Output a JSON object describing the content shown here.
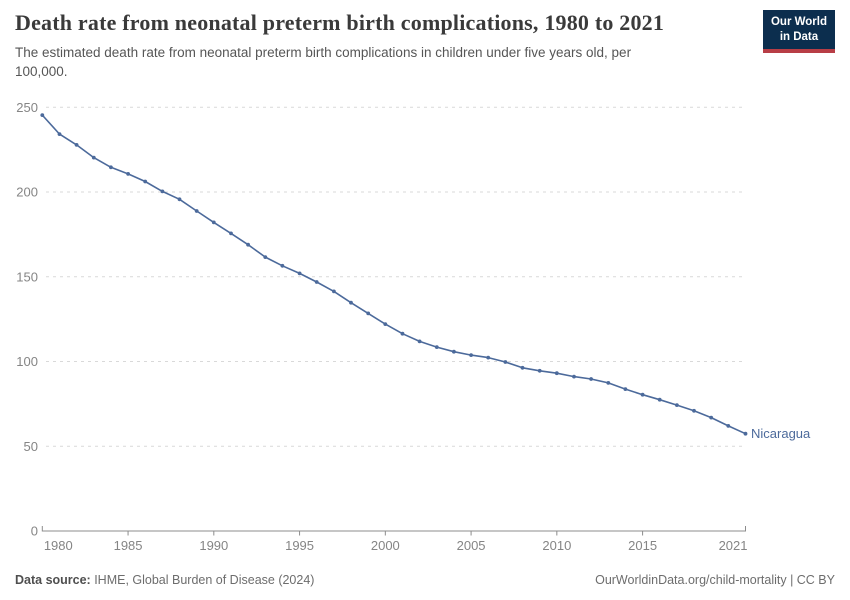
{
  "header": {
    "title": "Death rate from neonatal preterm birth complications, 1980 to 2021",
    "subtitle": "The estimated death rate from neonatal preterm birth complications in children under five years old, per\n100,000.",
    "logo": {
      "line1": "Our World",
      "line2": "in Data",
      "bg_color": "#0C2E4E",
      "accent_color": "#B83E46"
    }
  },
  "chart_data": {
    "type": "line",
    "title": "Death rate from neonatal preterm birth complications, 1980 to 2021",
    "ylabel": "",
    "xlabel": "",
    "ylim": [
      0,
      250
    ],
    "yticks": [
      0,
      50,
      100,
      150,
      200,
      250
    ],
    "xticks": [
      1980,
      1985,
      1990,
      1995,
      2000,
      2005,
      2010,
      2015,
      2021
    ],
    "grid": "horizontal-dashed",
    "legend_position": "end-of-line-label",
    "x": [
      1980,
      1981,
      1982,
      1983,
      1984,
      1985,
      1986,
      1987,
      1988,
      1989,
      1990,
      1991,
      1992,
      1993,
      1994,
      1995,
      1996,
      1997,
      1998,
      1999,
      2000,
      2001,
      2002,
      2003,
      2004,
      2005,
      2006,
      2007,
      2008,
      2009,
      2010,
      2011,
      2012,
      2013,
      2014,
      2015,
      2016,
      2017,
      2018,
      2019,
      2020,
      2021
    ],
    "series": [
      {
        "name": "Nicaragua",
        "color": "#4C6A9B",
        "values": [
          245.4,
          234.2,
          227.8,
          220.3,
          214.6,
          210.7,
          206.2,
          200.4,
          195.7,
          188.8,
          182.1,
          175.6,
          168.9,
          161.6,
          156.5,
          152.0,
          146.9,
          141.4,
          134.7,
          128.4,
          122.1,
          116.4,
          111.9,
          108.5,
          105.8,
          103.8,
          102.3,
          99.7,
          96.3,
          94.5,
          93.1,
          91.1,
          89.7,
          87.4,
          83.7,
          80.4,
          77.5,
          74.3,
          70.9,
          66.9,
          62.0,
          57.4
        ]
      }
    ],
    "colors": {
      "gridline": "#D9D9D9",
      "axis": "#8c8c8c",
      "tick_label": "#858585"
    }
  },
  "footer": {
    "source_label": "Data source:",
    "source_text": " IHME, Global Burden of Disease (2024)",
    "credit": "OurWorldinData.org/child-mortality | CC BY"
  }
}
